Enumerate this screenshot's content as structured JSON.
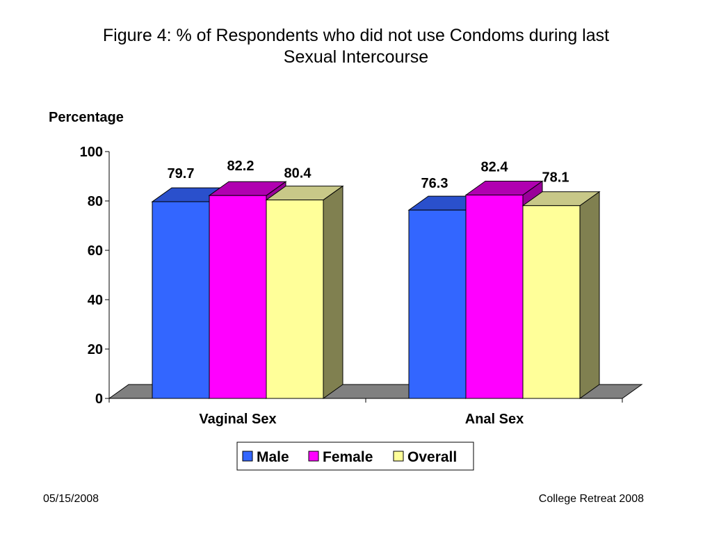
{
  "slide": {
    "title_line1": "Figure 4: % of Respondents who did not use Condoms during last",
    "title_line2": "Sexual Intercourse",
    "footer_date": "05/15/2008",
    "footer_event": "College Retreat 2008"
  },
  "chart_data": {
    "type": "bar",
    "style": "3d-clustered-column",
    "ylabel": "Percentage",
    "xlabel": "",
    "ylim": [
      0,
      100
    ],
    "yticks": [
      0,
      20,
      40,
      60,
      80,
      100
    ],
    "categories": [
      "Vaginal Sex",
      "Anal Sex"
    ],
    "series": [
      {
        "name": "Male",
        "values": [
          79.7,
          76.3
        ],
        "color": "#3366FF",
        "top_color": "#2A50CC",
        "side_color": "#1F3E9E"
      },
      {
        "name": "Female",
        "values": [
          82.2,
          82.4
        ],
        "color": "#FF00FF",
        "top_color": "#B000B0",
        "side_color": "#990099"
      },
      {
        "name": "Overall",
        "values": [
          80.4,
          78.1
        ],
        "color": "#FFFF99",
        "top_color": "#C8C888",
        "side_color": "#808050"
      }
    ],
    "data_labels": true,
    "legend_position": "bottom",
    "floor_color": "#808080",
    "grid": false
  }
}
